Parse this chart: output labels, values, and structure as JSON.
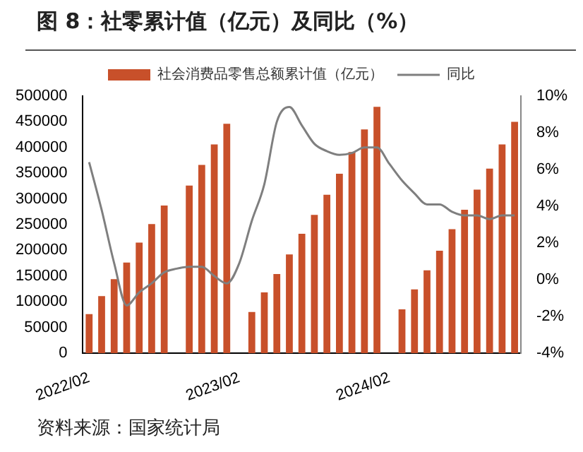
{
  "chart_data": {
    "type": "bar",
    "title": "图 8：社零累计值（亿元）及同比（%）",
    "categories": [
      "2022/02",
      null,
      null,
      null,
      null,
      null,
      null,
      null,
      null,
      null,
      null,
      null,
      "2023/02",
      null,
      null,
      null,
      null,
      null,
      null,
      null,
      null,
      null,
      null,
      null,
      "2024/02",
      null,
      null,
      null,
      null,
      null,
      null,
      null,
      null,
      null,
      null
    ],
    "series": [
      {
        "name": "社会消费品零售总额累计值（亿元）",
        "color": "#c8502a",
        "values": [
          76000,
          111000,
          144000,
          176000,
          215000,
          251000,
          287000,
          null,
          326000,
          366000,
          406000,
          446000,
          null,
          80000,
          118000,
          154000,
          192000,
          232000,
          269000,
          308000,
          349000,
          391000,
          435000,
          479000,
          null,
          85000,
          124000,
          161000,
          199000,
          241000,
          279000,
          318000,
          359000,
          406000,
          450000
        ]
      },
      {
        "name": "同比",
        "color": "#7f7f7f",
        "type": "line",
        "axis": "y2",
        "values": [
          6.4,
          3.8,
          0.9,
          -1.4,
          -0.7,
          -0.2,
          0.4,
          0.6,
          0.7,
          0.7,
          0.2,
          -0.2,
          0.9,
          3.2,
          5.2,
          8.6,
          9.4,
          8.4,
          7.4,
          7.0,
          6.8,
          6.9,
          7.2,
          7.2,
          6.3,
          5.4,
          4.7,
          4.1,
          4.1,
          3.7,
          3.5,
          3.5,
          3.3,
          3.5,
          3.5
        ]
      }
    ],
    "ylim": [
      0,
      500000
    ],
    "yticks": [
      0,
      50000,
      100000,
      150000,
      200000,
      250000,
      300000,
      350000,
      400000,
      450000,
      500000
    ],
    "y2lim": [
      -4,
      10
    ],
    "y2ticks": [
      {
        "value": -4,
        "label": "-4%"
      },
      {
        "value": -2,
        "label": "-2%"
      },
      {
        "value": 0,
        "label": "0%"
      },
      {
        "value": 2,
        "label": "2%"
      },
      {
        "value": 4,
        "label": "4%"
      },
      {
        "value": 6,
        "label": "6%"
      },
      {
        "value": 8,
        "label": "8%"
      },
      {
        "value": 10,
        "label": "10%"
      }
    ],
    "legend": "top",
    "grid": false,
    "marker": "none",
    "annotations": [
      "资料来源：国家统计局"
    ]
  }
}
